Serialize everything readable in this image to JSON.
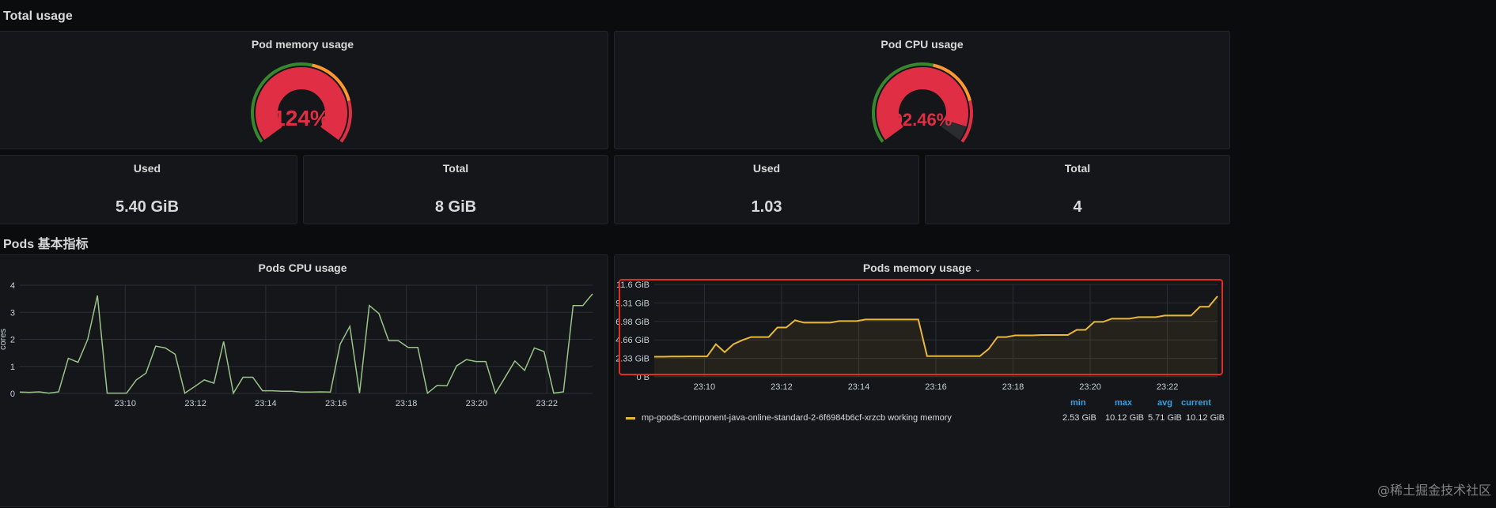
{
  "rows": {
    "total_usage": "Total usage",
    "pods_basic": "Pods 基本指标"
  },
  "gauges": [
    {
      "title": "Pod memory usage",
      "value_text": "124%",
      "percent": 124,
      "color": "#e02f44"
    },
    {
      "title": "Pod CPU usage",
      "value_text": "92.46%",
      "percent": 92.46,
      "color": "#e02f44"
    }
  ],
  "stats": [
    {
      "title": "Used",
      "value": "5.40 GiB"
    },
    {
      "title": "Total",
      "value": "8 GiB"
    },
    {
      "title": "Used",
      "value": "1.03"
    },
    {
      "title": "Total",
      "value": "4"
    }
  ],
  "cpu_panel": {
    "title": "Pods CPU usage"
  },
  "mem_panel": {
    "title": "Pods memory usage",
    "chevron": "⌄"
  },
  "colors": {
    "green": "#37872d",
    "orange": "#ff9830",
    "red": "#e02f44",
    "line_green": "#9ac48a",
    "line_yellow": "#eab839",
    "highlight": "#e02f22"
  },
  "legend": {
    "headers": [
      "min",
      "max",
      "avg",
      "current"
    ],
    "row_name": "mp-goods-component-java-online-standard-2-6f6984b6cf-xrzcb working memory",
    "row_values": [
      "2.53 GiB",
      "10.12 GiB",
      "5.71 GiB",
      "10.12 GiB"
    ]
  },
  "watermark": "@稀土掘金技术社区",
  "chart_data": [
    {
      "type": "line",
      "title": "Pods CPU usage",
      "xlabel": "",
      "ylabel": "cores",
      "ylim": [
        0,
        4
      ],
      "y_ticks": [
        "0",
        "1",
        "2",
        "3",
        "4"
      ],
      "x_ticks": [
        "23:10",
        "23:12",
        "23:14",
        "23:16",
        "23:18",
        "23:20",
        "23:22"
      ],
      "x_start_min": 1387.0,
      "x_end_min": 1403.3,
      "series": [
        {
          "values": [
            0.05,
            0.04,
            0.06,
            0.01,
            0.06,
            1.3,
            1.15,
            2.0,
            3.62,
            0.01,
            0.01,
            0.01,
            0.5,
            0.75,
            1.75,
            1.68,
            1.45,
            0.01,
            0.25,
            0.5,
            0.38,
            1.92,
            0.01,
            0.6,
            0.6,
            0.1,
            0.1,
            0.08,
            0.08,
            0.05,
            0.05,
            0.06,
            0.05,
            1.82,
            2.48,
            0.01,
            3.25,
            2.95,
            1.95,
            1.95,
            1.7,
            1.7,
            0.01,
            0.3,
            0.28,
            1.02,
            1.25,
            1.18,
            1.18,
            0.01,
            0.6,
            1.2,
            0.85,
            1.68,
            1.55,
            0.01,
            0.06,
            3.25,
            3.25,
            3.68
          ]
        }
      ]
    },
    {
      "type": "line",
      "title": "Pods memory usage",
      "xlabel": "",
      "ylabel": "",
      "ylim": [
        0,
        11.6
      ],
      "y_ticks": [
        "0 B",
        "2.33 GiB",
        "4.66 GiB",
        "6.98 GiB",
        "9.31 GiB",
        "11.6 GiB"
      ],
      "x_ticks": [
        "23:10",
        "23:12",
        "23:14",
        "23:16",
        "23:18",
        "23:20",
        "23:22"
      ],
      "x_start_min": 1388.7,
      "x_end_min": 1403.3,
      "series": [
        {
          "name": "mp-goods-component-java-online-standard-2-6f6984b6cf-xrzcb working memory",
          "values": [
            2.53,
            2.53,
            2.55,
            2.55,
            2.56,
            2.56,
            2.56,
            4.1,
            3.1,
            4.1,
            4.6,
            5.0,
            5.0,
            5.0,
            6.2,
            6.2,
            7.1,
            6.8,
            6.8,
            6.8,
            6.8,
            7.0,
            7.0,
            7.0,
            7.2,
            7.2,
            7.2,
            7.2,
            7.2,
            7.2,
            7.2,
            2.6,
            2.6,
            2.6,
            2.6,
            2.6,
            2.6,
            2.6,
            3.5,
            5.0,
            5.0,
            5.2,
            5.2,
            5.2,
            5.25,
            5.25,
            5.25,
            5.25,
            5.9,
            5.9,
            6.9,
            6.9,
            7.3,
            7.3,
            7.3,
            7.5,
            7.5,
            7.5,
            7.7,
            7.7,
            7.7,
            7.7,
            8.8,
            8.8,
            10.12
          ]
        }
      ]
    }
  ]
}
